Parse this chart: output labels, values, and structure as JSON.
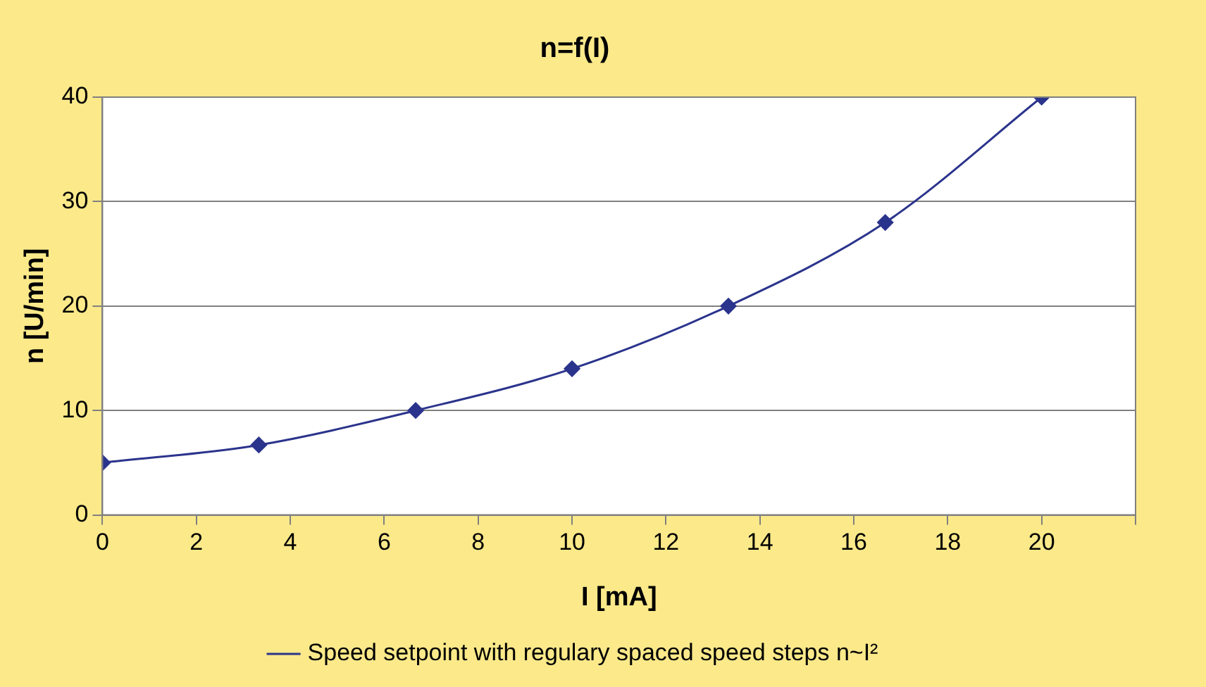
{
  "chart_data": {
    "type": "line",
    "title": "n=f(I)",
    "xlabel": "I [mA]",
    "ylabel": "n [U/min]",
    "x": [
      0,
      3.33,
      6.67,
      10,
      13.33,
      16.67,
      20
    ],
    "series": [
      {
        "name": "Speed setpoint with regulary spaced speed steps n~I²",
        "color": "#2b348c",
        "values": [
          5,
          6.7,
          10,
          14,
          20,
          28,
          40
        ]
      }
    ],
    "xlim": [
      0,
      22
    ],
    "xticks": [
      0,
      2,
      4,
      6,
      8,
      10,
      12,
      14,
      16,
      18,
      20,
      {
        "value": 22,
        "label": null
      }
    ],
    "ylim": [
      0,
      40
    ],
    "yticks": [
      0,
      10,
      20,
      30,
      40
    ],
    "grid": "y",
    "legend": "bottom",
    "marker": "diamond",
    "line_style": "solid"
  }
}
